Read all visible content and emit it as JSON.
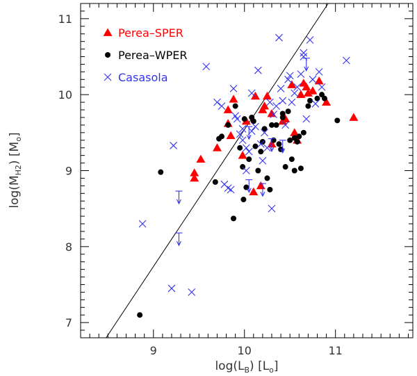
{
  "chart_data": {
    "type": "scatter",
    "xlabel_main": "log(L",
    "xlabel_sub": "B",
    "xlabel_mid": ") [L",
    "xlabel_unitsub": "o",
    "xlabel_end": "]",
    "ylabel_main": "log(M",
    "ylabel_sub": "H2",
    "ylabel_mid": ") [M",
    "ylabel_unitsub": "o",
    "ylabel_end": "]",
    "xlim": [
      8.2,
      11.85
    ],
    "ylim": [
      6.8,
      11.2
    ],
    "x_ticks": [
      "9",
      "10",
      "11"
    ],
    "y_ticks": [
      "7",
      "8",
      "9",
      "10",
      "11"
    ],
    "grid": false,
    "legend_position": "top-left",
    "fit_line": {
      "x": [
        8.48,
        10.92
      ],
      "y": [
        6.8,
        11.2
      ]
    },
    "series": [
      {
        "name": "Perea–SPER",
        "marker": "triangle",
        "color": "#ff0000",
        "points": [
          [
            9.45,
            8.9
          ],
          [
            9.45,
            8.97
          ],
          [
            9.52,
            9.15
          ],
          [
            9.7,
            9.3
          ],
          [
            9.82,
            9.62
          ],
          [
            9.82,
            9.8
          ],
          [
            9.85,
            9.46
          ],
          [
            9.88,
            9.94
          ],
          [
            9.98,
            9.2
          ],
          [
            10.02,
            9.65
          ],
          [
            10.1,
            8.72
          ],
          [
            10.12,
            9.98
          ],
          [
            10.18,
            8.8
          ],
          [
            10.2,
            9.8
          ],
          [
            10.22,
            9.85
          ],
          [
            10.25,
            9.98
          ],
          [
            10.3,
            9.75
          ],
          [
            10.3,
            9.35
          ],
          [
            10.42,
            9.65
          ],
          [
            10.45,
            9.68
          ],
          [
            10.52,
            10.13
          ],
          [
            10.55,
            9.5
          ],
          [
            10.58,
            9.4
          ],
          [
            10.62,
            10.0
          ],
          [
            10.65,
            10.15
          ],
          [
            10.68,
            10.1
          ],
          [
            10.7,
            10.02
          ],
          [
            10.75,
            10.05
          ],
          [
            10.82,
            10.18
          ],
          [
            10.9,
            9.9
          ],
          [
            11.2,
            9.7
          ]
        ]
      },
      {
        "name": "Perea–WPER",
        "marker": "circle",
        "color": "#000000",
        "points": [
          [
            8.85,
            7.1
          ],
          [
            9.08,
            8.98
          ],
          [
            9.68,
            8.85
          ],
          [
            9.72,
            9.42
          ],
          [
            9.75,
            9.45
          ],
          [
            9.82,
            9.6
          ],
          [
            9.88,
            8.37
          ],
          [
            9.9,
            9.85
          ],
          [
            9.95,
            9.3
          ],
          [
            9.98,
            9.05
          ],
          [
            9.99,
            8.62
          ],
          [
            10.0,
            9.68
          ],
          [
            10.02,
            8.78
          ],
          [
            10.05,
            9.15
          ],
          [
            10.08,
            9.7
          ],
          [
            10.1,
            9.65
          ],
          [
            10.12,
            9.32
          ],
          [
            10.15,
            9.0
          ],
          [
            10.18,
            9.25
          ],
          [
            10.2,
            9.38
          ],
          [
            10.22,
            9.55
          ],
          [
            10.25,
            8.9
          ],
          [
            10.28,
            8.75
          ],
          [
            10.3,
            9.6
          ],
          [
            10.32,
            9.4
          ],
          [
            10.35,
            9.6
          ],
          [
            10.38,
            9.35
          ],
          [
            10.4,
            9.28
          ],
          [
            10.42,
            9.7
          ],
          [
            10.42,
            9.75
          ],
          [
            10.45,
            9.05
          ],
          [
            10.48,
            9.78
          ],
          [
            10.5,
            9.4
          ],
          [
            10.52,
            9.15
          ],
          [
            10.55,
            9.0
          ],
          [
            10.55,
            9.43
          ],
          [
            10.58,
            9.38
          ],
          [
            10.6,
            9.45
          ],
          [
            10.62,
            9.03
          ],
          [
            10.65,
            9.5
          ],
          [
            10.7,
            9.85
          ],
          [
            10.8,
            9.95
          ],
          [
            10.85,
            10.0
          ],
          [
            10.88,
            9.95
          ],
          [
            11.02,
            9.66
          ],
          [
            10.72,
            9.92
          ]
        ]
      },
      {
        "name": "Casasola",
        "marker": "cross",
        "color": "#3333ee",
        "points": [
          [
            8.88,
            8.3
          ],
          [
            9.2,
            7.45
          ],
          [
            9.42,
            7.4
          ],
          [
            9.22,
            9.33
          ],
          [
            9.58,
            10.37
          ],
          [
            9.7,
            9.9
          ],
          [
            9.75,
            9.85
          ],
          [
            9.78,
            8.82
          ],
          [
            9.82,
            8.77
          ],
          [
            9.85,
            8.75
          ],
          [
            9.88,
            10.08
          ],
          [
            9.9,
            9.72
          ],
          [
            9.92,
            9.68
          ],
          [
            9.95,
            9.48
          ],
          [
            9.98,
            9.4
          ],
          [
            10.02,
            9.3
          ],
          [
            10.05,
            9.25
          ],
          [
            10.08,
            9.52
          ],
          [
            10.08,
            10.02
          ],
          [
            10.12,
            9.58
          ],
          [
            10.15,
            10.32
          ],
          [
            10.18,
            9.35
          ],
          [
            10.2,
            9.13
          ],
          [
            10.22,
            9.5
          ],
          [
            10.25,
            9.3
          ],
          [
            10.28,
            9.9
          ],
          [
            10.3,
            8.5
          ],
          [
            10.32,
            9.74
          ],
          [
            10.35,
            9.85
          ],
          [
            10.38,
            10.75
          ],
          [
            10.4,
            10.08
          ],
          [
            10.42,
            9.92
          ],
          [
            10.45,
            9.6
          ],
          [
            10.48,
            10.2
          ],
          [
            10.5,
            10.25
          ],
          [
            10.52,
            9.9
          ],
          [
            10.55,
            10.02
          ],
          [
            10.58,
            10.1
          ],
          [
            10.62,
            10.27
          ],
          [
            10.65,
            10.5
          ],
          [
            10.65,
            10.55
          ],
          [
            10.68,
            9.68
          ],
          [
            10.72,
            10.72
          ],
          [
            10.75,
            10.2
          ],
          [
            10.78,
            9.88
          ],
          [
            10.82,
            10.3
          ],
          [
            10.85,
            10.1
          ],
          [
            11.12,
            10.45
          ],
          [
            10.02,
            9.0
          ],
          [
            9.98,
            9.55
          ]
        ]
      }
    ],
    "upper_limits": [
      {
        "x": 9.28,
        "y": 8.73
      },
      {
        "x": 9.28,
        "y": 8.18
      },
      {
        "x": 10.05,
        "y": 8.88
      },
      {
        "x": 10.2,
        "y": 8.83
      },
      {
        "x": 10.42,
        "y": 9.4
      },
      {
        "x": 10.3,
        "y": 9.42
      },
      {
        "x": 10.68,
        "y": 10.48
      },
      {
        "x": 10.05,
        "y": 9.58
      }
    ]
  }
}
